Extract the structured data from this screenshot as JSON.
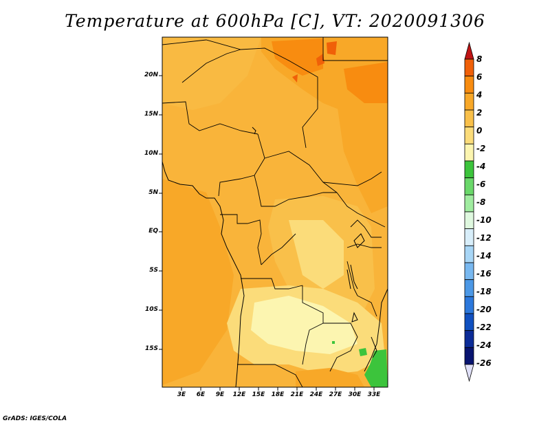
{
  "title": "Temperature at 600hPa [C], VT: 2020091306",
  "credit": "GrADS: IGES/COLA",
  "lat_labels": [
    "20N",
    "15N",
    "10N",
    "5N",
    "EQ",
    "5S",
    "10S",
    "15S"
  ],
  "lon_labels": [
    "3E",
    "6E",
    "9E",
    "12E",
    "15E",
    "18E",
    "21E",
    "24E",
    "27E",
    "30E",
    "33E"
  ],
  "colorbar": {
    "labels": [
      "8",
      "6",
      "4",
      "2",
      "0",
      "-2",
      "-4",
      "-6",
      "-8",
      "-10",
      "-12",
      "-14",
      "-16",
      "-18",
      "-20",
      "-22",
      "-24",
      "-26"
    ],
    "colors": [
      "#e02020",
      "#f06008",
      "#f88c10",
      "#f8a828",
      "#f9c04a",
      "#fbdc7a",
      "#fcf5b0",
      "#3cc43c",
      "#6ad86a",
      "#a0eca0",
      "#dff8df",
      "#d8eefa",
      "#a8d6f6",
      "#78b8f0",
      "#4c98e6",
      "#2c78dc",
      "#1050c0",
      "#0c2c98",
      "#081470"
    ],
    "top_cap_color": "#c01414",
    "bottom_cap_color": "#e0e0f8"
  },
  "palette": {
    "warm_orange": "#f8a828",
    "mid_orange": "#f9b43a",
    "light_orange": "#f9c04a",
    "pale_yellow": "#fbdc7a",
    "cream": "#fcf5b0",
    "dark_orange": "#f88c10",
    "red_orange": "#f06008",
    "green": "#3cc43c"
  }
}
